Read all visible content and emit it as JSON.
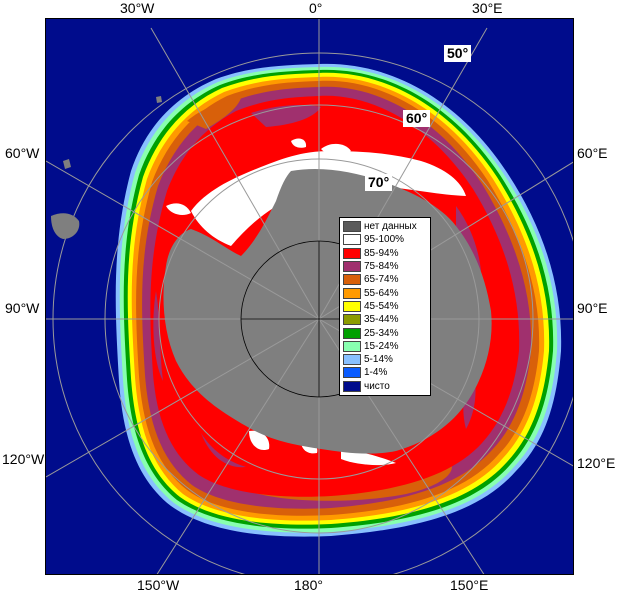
{
  "map": {
    "colors": {
      "ocean": "#000c8c",
      "land": "#7f7f7f",
      "nodata": "#595959",
      "graticule": "#9a9a9a"
    },
    "lon_labels": {
      "top": [
        "30°W",
        "0°",
        "30°E"
      ],
      "left": [
        "60°W",
        "90°W",
        "120°W"
      ],
      "right": [
        "60°E",
        "90°E",
        "120°E"
      ],
      "bottom": [
        "150°W",
        "180°",
        "150°E"
      ]
    },
    "lat_labels": [
      "50°",
      "60°",
      "70°"
    ]
  },
  "legend": {
    "items": [
      {
        "label": "нет данных",
        "color": "#5a5a5a"
      },
      {
        "label": "95-100%",
        "color": "#ffffff"
      },
      {
        "label": "85-94%",
        "color": "#ff0000"
      },
      {
        "label": "75-84%",
        "color": "#a0306e"
      },
      {
        "label": "65-74%",
        "color": "#d8600a"
      },
      {
        "label": "55-64%",
        "color": "#ff9a00"
      },
      {
        "label": "45-54%",
        "color": "#ffff00"
      },
      {
        "label": "35-44%",
        "color": "#8c9c00"
      },
      {
        "label": "25-34%",
        "color": "#00a000"
      },
      {
        "label": "15-24%",
        "color": "#88ffb0"
      },
      {
        "label": "5-14%",
        "color": "#88c0ff"
      },
      {
        "label": "1-4%",
        "color": "#0a5cff"
      },
      {
        "label": "чисто",
        "color": "#000c8c"
      }
    ]
  }
}
